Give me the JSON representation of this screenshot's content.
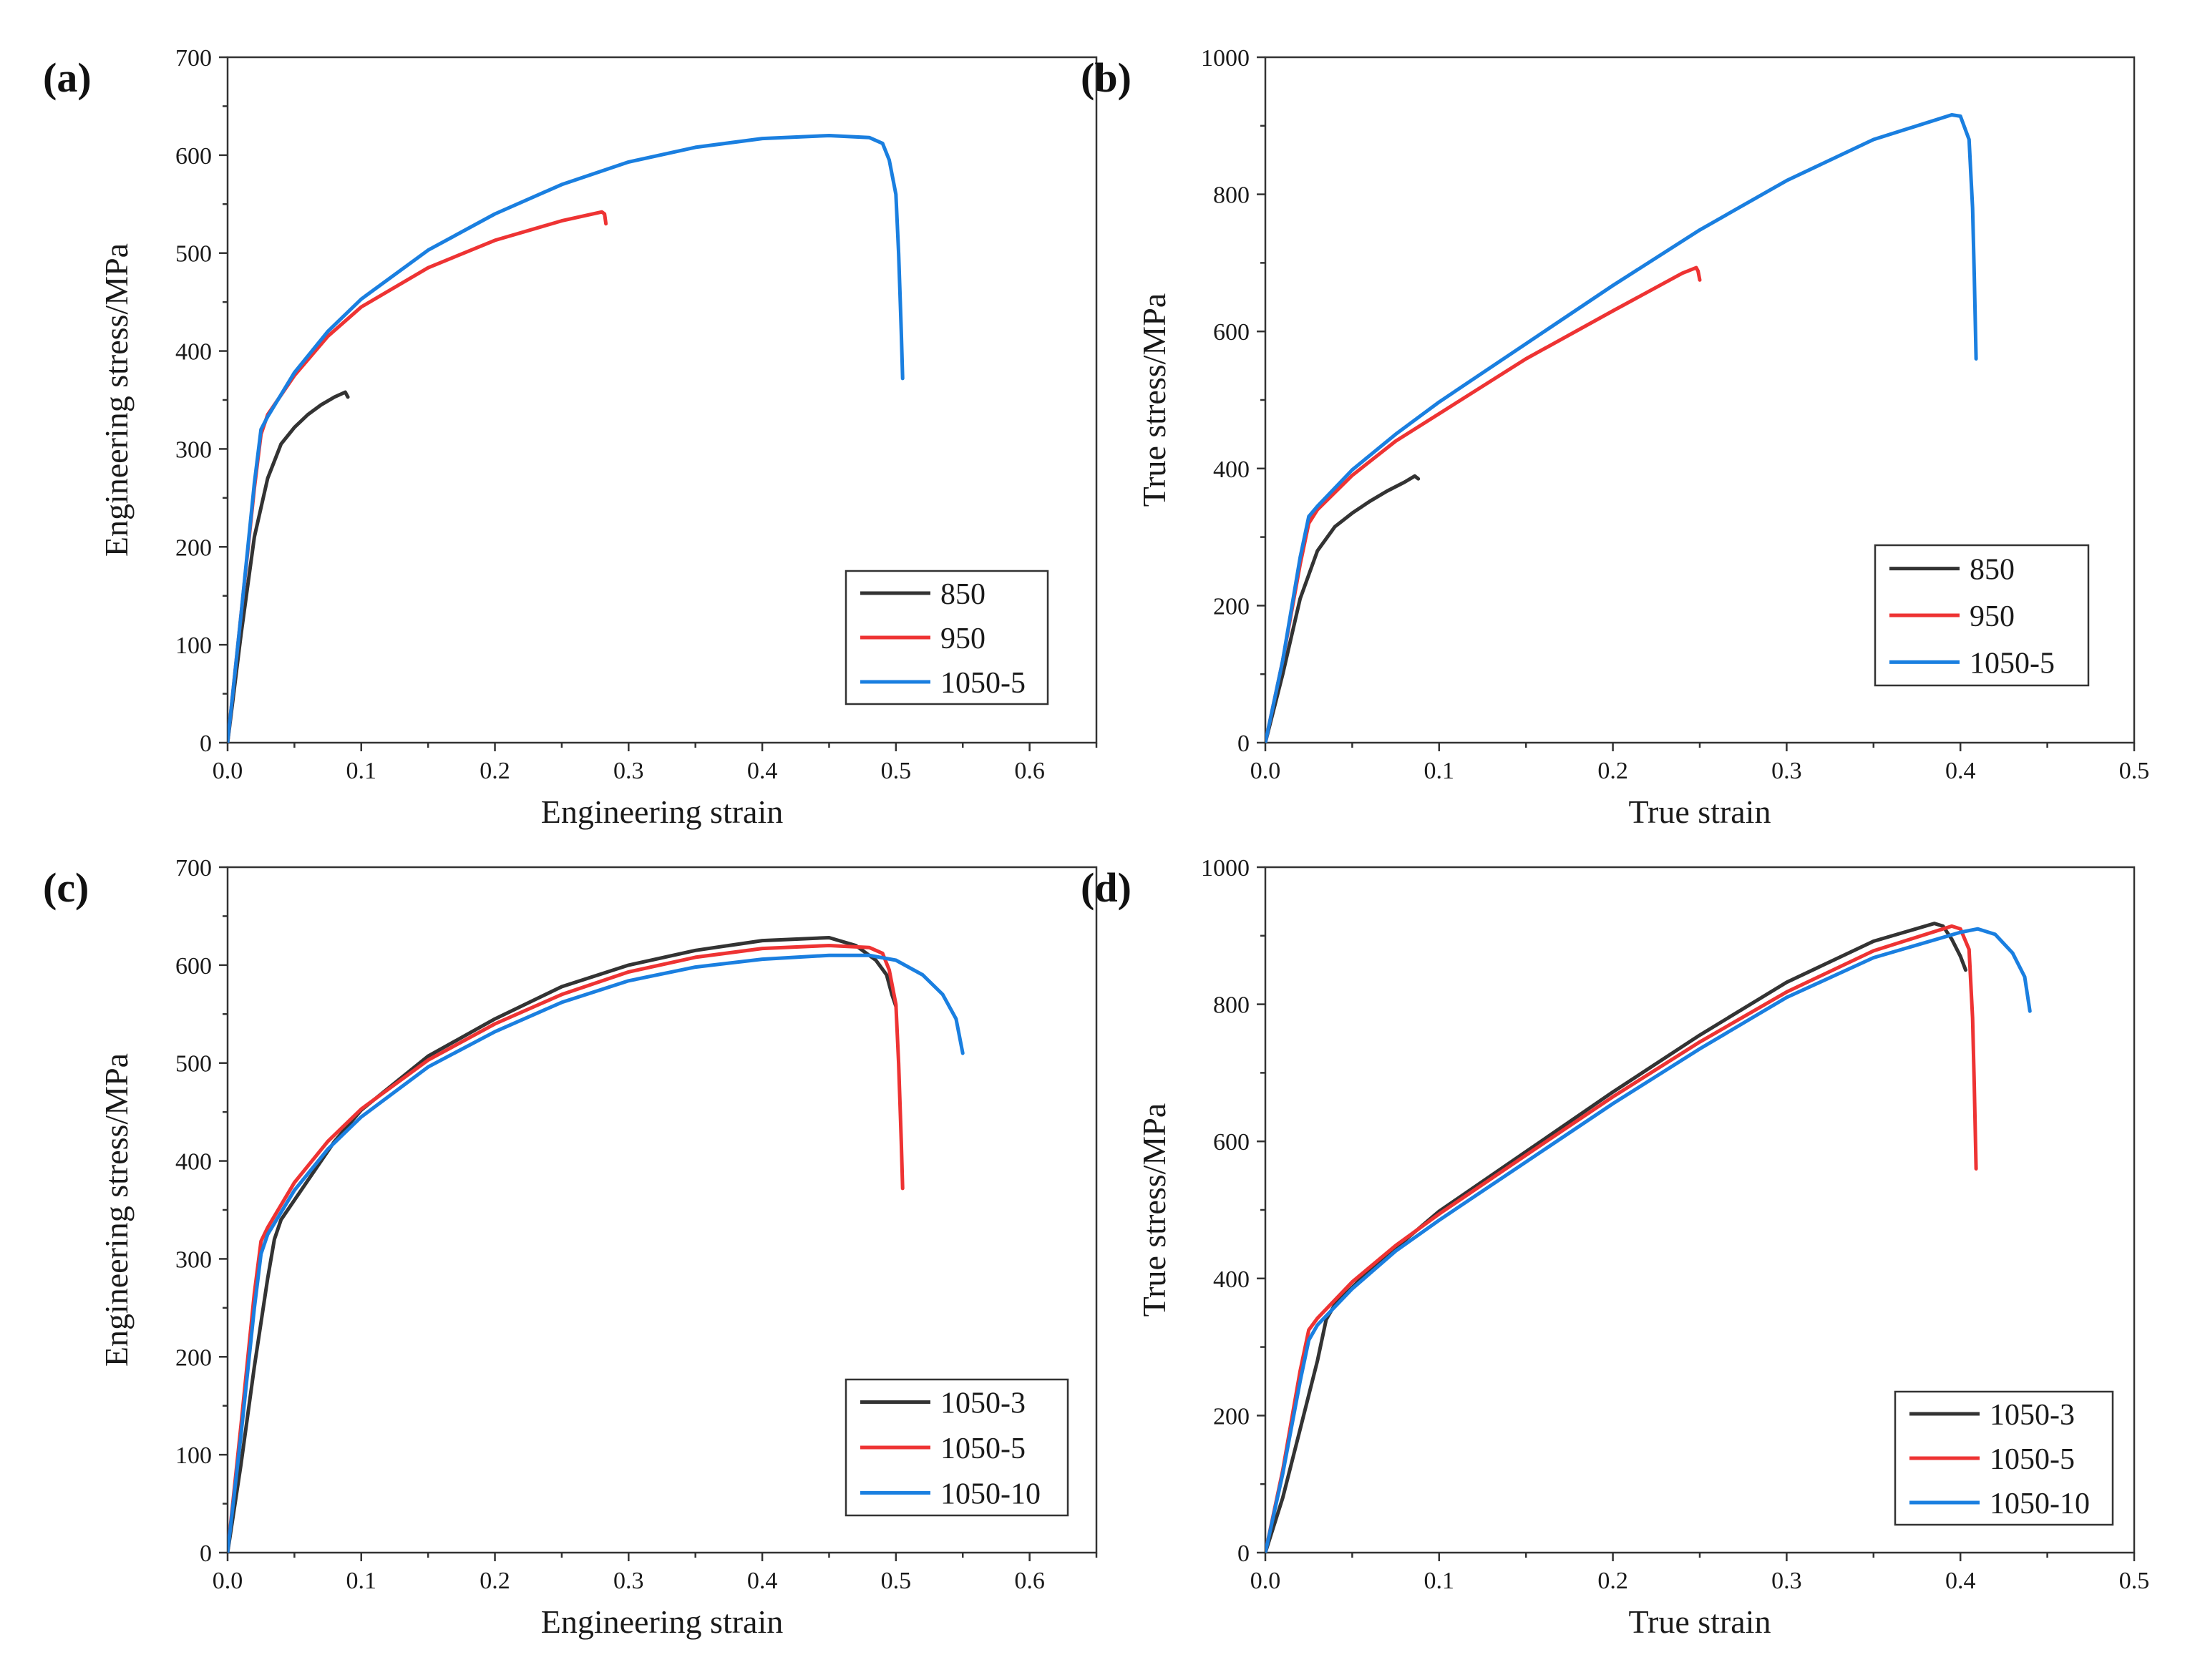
{
  "chart_data": [
    {
      "panel": "(a)",
      "type": "line",
      "xlabel": "Engineering strain",
      "ylabel": "Engineering stress/MPa",
      "xlim": [
        0,
        0.65
      ],
      "ylim": [
        0,
        700
      ],
      "xticks": [
        "0.0",
        "0.1",
        "0.2",
        "0.3",
        "0.4",
        "0.5",
        "0.6"
      ],
      "xtick_values": [
        0,
        0.1,
        0.2,
        0.3,
        0.4,
        0.5,
        0.6
      ],
      "yticks": [
        "0",
        "100",
        "200",
        "300",
        "400",
        "500",
        "600",
        "700"
      ],
      "ytick_values": [
        0,
        100,
        200,
        300,
        400,
        500,
        600,
        700
      ],
      "legend_position": "bottom-right",
      "series": [
        {
          "name": "850",
          "color": "#333333",
          "points": [
            [
              0,
              0
            ],
            [
              0.01,
              110
            ],
            [
              0.02,
              210
            ],
            [
              0.025,
              240
            ],
            [
              0.03,
              270
            ],
            [
              0.04,
              305
            ],
            [
              0.05,
              322
            ],
            [
              0.06,
              335
            ],
            [
              0.07,
              345
            ],
            [
              0.08,
              353
            ],
            [
              0.088,
              358
            ],
            [
              0.09,
              353
            ]
          ]
        },
        {
          "name": "950",
          "color": "#ee3333",
          "points": [
            [
              0,
              0
            ],
            [
              0.01,
              130
            ],
            [
              0.02,
              260
            ],
            [
              0.025,
              315
            ],
            [
              0.03,
              335
            ],
            [
              0.05,
              375
            ],
            [
              0.075,
              415
            ],
            [
              0.1,
              445
            ],
            [
              0.15,
              485
            ],
            [
              0.2,
              513
            ],
            [
              0.25,
              533
            ],
            [
              0.28,
              542
            ],
            [
              0.282,
              540
            ],
            [
              0.283,
              530
            ]
          ]
        },
        {
          "name": "1050-5",
          "color": "#1a7fe0",
          "points": [
            [
              0,
              0
            ],
            [
              0.01,
              130
            ],
            [
              0.02,
              265
            ],
            [
              0.025,
              320
            ],
            [
              0.03,
              333
            ],
            [
              0.05,
              378
            ],
            [
              0.075,
              420
            ],
            [
              0.1,
              453
            ],
            [
              0.15,
              503
            ],
            [
              0.2,
              540
            ],
            [
              0.25,
              570
            ],
            [
              0.3,
              593
            ],
            [
              0.35,
              608
            ],
            [
              0.4,
              617
            ],
            [
              0.45,
              620
            ],
            [
              0.48,
              618
            ],
            [
              0.49,
              612
            ],
            [
              0.495,
              595
            ],
            [
              0.5,
              560
            ],
            [
              0.502,
              500
            ],
            [
              0.504,
              420
            ],
            [
              0.505,
              372
            ]
          ]
        }
      ]
    },
    {
      "panel": "(b)",
      "type": "line",
      "xlabel": "True strain",
      "ylabel": "True stress/MPa",
      "xlim": [
        0,
        0.5
      ],
      "ylim": [
        0,
        1000
      ],
      "xticks": [
        "0.0",
        "0.1",
        "0.2",
        "0.3",
        "0.4",
        "0.5"
      ],
      "xtick_values": [
        0,
        0.1,
        0.2,
        0.3,
        0.4,
        0.5
      ],
      "yticks": [
        "0",
        "200",
        "400",
        "600",
        "800",
        "1000"
      ],
      "ytick_values": [
        0,
        200,
        400,
        600,
        800,
        1000
      ],
      "legend_position": "bottom-right",
      "series": [
        {
          "name": "850",
          "color": "#333333",
          "points": [
            [
              0,
              0
            ],
            [
              0.01,
              100
            ],
            [
              0.02,
              210
            ],
            [
              0.025,
              245
            ],
            [
              0.03,
              280
            ],
            [
              0.04,
              315
            ],
            [
              0.05,
              335
            ],
            [
              0.06,
              352
            ],
            [
              0.07,
              367
            ],
            [
              0.08,
              380
            ],
            [
              0.086,
              389
            ],
            [
              0.088,
              385
            ]
          ]
        },
        {
          "name": "950",
          "color": "#ee3333",
          "points": [
            [
              0,
              0
            ],
            [
              0.01,
              120
            ],
            [
              0.02,
              260
            ],
            [
              0.025,
              320
            ],
            [
              0.03,
              340
            ],
            [
              0.05,
              390
            ],
            [
              0.075,
              440
            ],
            [
              0.1,
              480
            ],
            [
              0.15,
              560
            ],
            [
              0.2,
              630
            ],
            [
              0.24,
              685
            ],
            [
              0.248,
              693
            ],
            [
              0.249,
              688
            ],
            [
              0.25,
              675
            ]
          ]
        },
        {
          "name": "1050-5",
          "color": "#1a7fe0",
          "points": [
            [
              0,
              0
            ],
            [
              0.01,
              120
            ],
            [
              0.02,
              270
            ],
            [
              0.025,
              330
            ],
            [
              0.03,
              345
            ],
            [
              0.05,
              398
            ],
            [
              0.075,
              450
            ],
            [
              0.1,
              497
            ],
            [
              0.15,
              582
            ],
            [
              0.2,
              667
            ],
            [
              0.25,
              748
            ],
            [
              0.3,
              820
            ],
            [
              0.35,
              880
            ],
            [
              0.395,
              916
            ],
            [
              0.4,
              914
            ],
            [
              0.405,
              880
            ],
            [
              0.407,
              780
            ],
            [
              0.408,
              680
            ],
            [
              0.409,
              560
            ]
          ]
        }
      ]
    },
    {
      "panel": "(c)",
      "type": "line",
      "xlabel": "Engineering strain",
      "ylabel": "Engineering stress/MPa",
      "xlim": [
        0,
        0.65
      ],
      "ylim": [
        0,
        700
      ],
      "xticks": [
        "0.0",
        "0.1",
        "0.2",
        "0.3",
        "0.4",
        "0.5",
        "0.6"
      ],
      "xtick_values": [
        0,
        0.1,
        0.2,
        0.3,
        0.4,
        0.5,
        0.6
      ],
      "yticks": [
        "0",
        "100",
        "200",
        "300",
        "400",
        "500",
        "600",
        "700"
      ],
      "ytick_values": [
        0,
        100,
        200,
        300,
        400,
        500,
        600,
        700
      ],
      "legend_position": "bottom-right",
      "series": [
        {
          "name": "1050-3",
          "color": "#333333",
          "points": [
            [
              0,
              0
            ],
            [
              0.01,
              90
            ],
            [
              0.02,
              190
            ],
            [
              0.03,
              280
            ],
            [
              0.035,
              320
            ],
            [
              0.04,
              340
            ],
            [
              0.06,
              380
            ],
            [
              0.08,
              420
            ],
            [
              0.1,
              452
            ],
            [
              0.15,
              507
            ],
            [
              0.2,
              545
            ],
            [
              0.25,
              578
            ],
            [
              0.3,
              600
            ],
            [
              0.35,
              615
            ],
            [
              0.4,
              625
            ],
            [
              0.45,
              628
            ],
            [
              0.47,
              620
            ],
            [
              0.485,
              605
            ],
            [
              0.493,
              590
            ],
            [
              0.497,
              570
            ],
            [
              0.5,
              558
            ]
          ]
        },
        {
          "name": "1050-5",
          "color": "#ee3333",
          "points": [
            [
              0,
              0
            ],
            [
              0.01,
              130
            ],
            [
              0.02,
              265
            ],
            [
              0.025,
              318
            ],
            [
              0.03,
              332
            ],
            [
              0.05,
              378
            ],
            [
              0.075,
              420
            ],
            [
              0.1,
              453
            ],
            [
              0.15,
              503
            ],
            [
              0.2,
              540
            ],
            [
              0.25,
              570
            ],
            [
              0.3,
              593
            ],
            [
              0.35,
              608
            ],
            [
              0.4,
              617
            ],
            [
              0.45,
              620
            ],
            [
              0.48,
              618
            ],
            [
              0.49,
              612
            ],
            [
              0.495,
              595
            ],
            [
              0.5,
              560
            ],
            [
              0.502,
              500
            ],
            [
              0.504,
              420
            ],
            [
              0.505,
              372
            ]
          ]
        },
        {
          "name": "1050-10",
          "color": "#1a7fe0",
          "points": [
            [
              0,
              0
            ],
            [
              0.01,
              120
            ],
            [
              0.02,
              250
            ],
            [
              0.025,
              305
            ],
            [
              0.03,
              325
            ],
            [
              0.05,
              370
            ],
            [
              0.075,
              412
            ],
            [
              0.1,
              445
            ],
            [
              0.15,
              496
            ],
            [
              0.2,
              532
            ],
            [
              0.25,
              562
            ],
            [
              0.3,
              584
            ],
            [
              0.35,
              598
            ],
            [
              0.4,
              606
            ],
            [
              0.45,
              610
            ],
            [
              0.48,
              610
            ],
            [
              0.5,
              605
            ],
            [
              0.52,
              590
            ],
            [
              0.535,
              570
            ],
            [
              0.545,
              545
            ],
            [
              0.55,
              510
            ]
          ]
        }
      ]
    },
    {
      "panel": "(d)",
      "type": "line",
      "xlabel": "True strain",
      "ylabel": "True stress/MPa",
      "xlim": [
        0,
        0.5
      ],
      "ylim": [
        0,
        1000
      ],
      "xticks": [
        "0.0",
        "0.1",
        "0.2",
        "0.3",
        "0.4",
        "0.5"
      ],
      "xtick_values": [
        0,
        0.1,
        0.2,
        0.3,
        0.4,
        0.5
      ],
      "yticks": [
        "0",
        "200",
        "400",
        "600",
        "800",
        "1000"
      ],
      "ytick_values": [
        0,
        200,
        400,
        600,
        800,
        1000
      ],
      "legend_position": "bottom-right",
      "series": [
        {
          "name": "1050-3",
          "color": "#333333",
          "points": [
            [
              0,
              0
            ],
            [
              0.01,
              80
            ],
            [
              0.02,
              180
            ],
            [
              0.03,
              280
            ],
            [
              0.035,
              340
            ],
            [
              0.04,
              362
            ],
            [
              0.06,
              412
            ],
            [
              0.08,
              455
            ],
            [
              0.1,
              498
            ],
            [
              0.15,
              585
            ],
            [
              0.2,
              672
            ],
            [
              0.25,
              755
            ],
            [
              0.3,
              832
            ],
            [
              0.35,
              892
            ],
            [
              0.385,
              918
            ],
            [
              0.39,
              914
            ],
            [
              0.395,
              895
            ],
            [
              0.4,
              870
            ],
            [
              0.403,
              850
            ]
          ]
        },
        {
          "name": "1050-5",
          "color": "#ee3333",
          "points": [
            [
              0,
              0
            ],
            [
              0.01,
              120
            ],
            [
              0.02,
              265
            ],
            [
              0.025,
              325
            ],
            [
              0.03,
              342
            ],
            [
              0.05,
              395
            ],
            [
              0.075,
              448
            ],
            [
              0.1,
              494
            ],
            [
              0.15,
              580
            ],
            [
              0.2,
              665
            ],
            [
              0.25,
              745
            ],
            [
              0.3,
              818
            ],
            [
              0.35,
              878
            ],
            [
              0.395,
              914
            ],
            [
              0.4,
              910
            ],
            [
              0.405,
              880
            ],
            [
              0.407,
              780
            ],
            [
              0.408,
              680
            ],
            [
              0.409,
              560
            ]
          ]
        },
        {
          "name": "1050-10",
          "color": "#1a7fe0",
          "points": [
            [
              0,
              0
            ],
            [
              0.01,
              115
            ],
            [
              0.02,
              250
            ],
            [
              0.025,
              310
            ],
            [
              0.03,
              332
            ],
            [
              0.05,
              385
            ],
            [
              0.075,
              440
            ],
            [
              0.1,
              485
            ],
            [
              0.15,
              570
            ],
            [
              0.2,
              655
            ],
            [
              0.25,
              735
            ],
            [
              0.3,
              810
            ],
            [
              0.35,
              868
            ],
            [
              0.4,
              905
            ],
            [
              0.41,
              910
            ],
            [
              0.42,
              902
            ],
            [
              0.43,
              875
            ],
            [
              0.437,
              840
            ],
            [
              0.44,
              790
            ]
          ]
        }
      ]
    }
  ]
}
